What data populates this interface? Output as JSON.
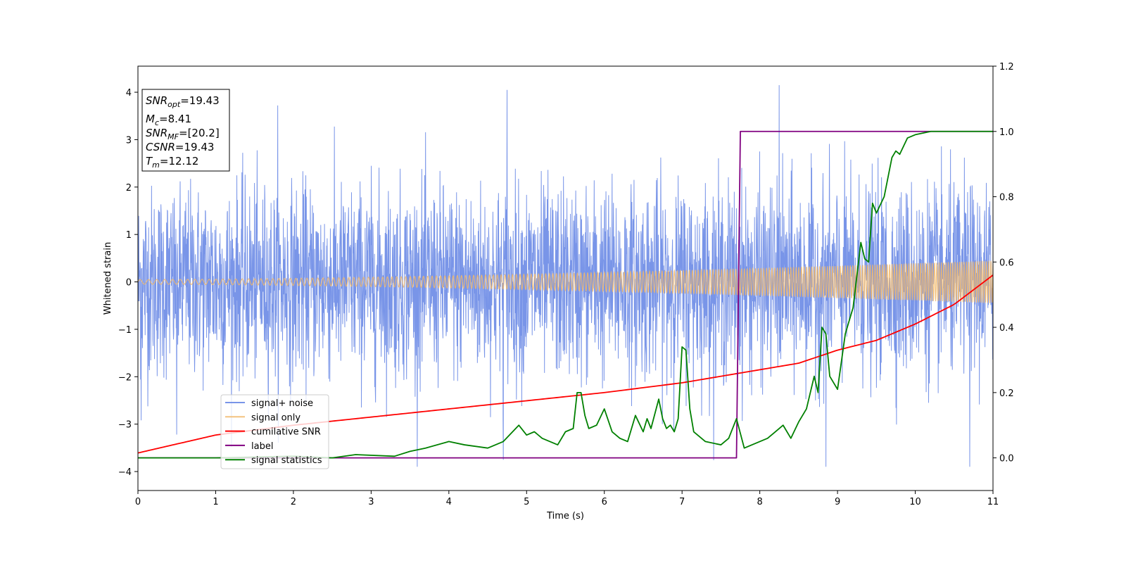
{
  "chart_data": {
    "type": "line",
    "title": "",
    "xlabel": "Time (s)",
    "ylabel": "Whitened strain",
    "y2label": "",
    "xlim": [
      0,
      11
    ],
    "ylim": [
      -4.4,
      4.55
    ],
    "y2lim": [
      -0.1,
      1.2
    ],
    "xticks": [
      0,
      1,
      2,
      3,
      4,
      5,
      6,
      7,
      8,
      9,
      10,
      11
    ],
    "xtick_labels": [
      "0",
      "1",
      "2",
      "3",
      "4",
      "5",
      "6",
      "7",
      "8",
      "9",
      "10",
      "11"
    ],
    "yticks": [
      4,
      3,
      2,
      1,
      0,
      -1,
      -2,
      -3,
      -4
    ],
    "ytick_labels": [
      "4",
      "3",
      "2",
      "1",
      "0",
      "−1",
      "−2",
      "−3",
      "−4"
    ],
    "y2ticks": [
      1.2,
      1.0,
      0.8,
      0.6,
      0.4,
      0.2,
      0.0
    ],
    "y2tick_labels": [
      "1.2",
      "1.0",
      "0.8",
      "0.6",
      "0.4",
      "0.2",
      "0.0"
    ],
    "grid": false,
    "legend_position": "lower-left",
    "colors": {
      "noise": "#6a8ae6",
      "signal": "#f2b86a",
      "csnr": "#ff0000",
      "label": "#800080",
      "stat": "#008000"
    },
    "annotation": {
      "snr_opt": {
        "main": "SNR",
        "sub": "opt",
        "value": "=19.43"
      },
      "mc": {
        "main": "M",
        "sub": "c",
        "value": "=8.41"
      },
      "snr_mf": {
        "main": "SNR",
        "sub": "MF",
        "value": "=[20.2]"
      },
      "csnr": {
        "main": "CSNR",
        "value": "=19.43"
      },
      "tm": {
        "main": "T",
        "sub": "m",
        "value": "=12.12"
      }
    },
    "series": [
      {
        "name": "signal+ noise",
        "axis": "left",
        "description_kind": "noise",
        "amplitude_std": 1.0,
        "peaks": [
          [
            1.8,
            3.72
          ],
          [
            4.75,
            4.05
          ],
          [
            8.25,
            4.18
          ],
          [
            8.85,
            -3.92
          ],
          [
            10.7,
            -4.0
          ],
          [
            4.7,
            -3.75
          ],
          [
            0.04,
            -2.92
          ],
          [
            0.5,
            -3.22
          ]
        ]
      },
      {
        "name": "signal only",
        "axis": "left",
        "amplitude_start": 0.05,
        "amplitude_end": 0.45,
        "chirp": true
      },
      {
        "name": "cumilative SNR",
        "axis": "right",
        "x": [
          0,
          1,
          2,
          3,
          4,
          5,
          6,
          7,
          8,
          8.5,
          9,
          9.5,
          10,
          10.5,
          11
        ],
        "y": [
          0.015,
          0.07,
          0.1,
          0.125,
          0.15,
          0.175,
          0.2,
          0.23,
          0.27,
          0.29,
          0.33,
          0.36,
          0.41,
          0.47,
          0.56
        ]
      },
      {
        "name": "label",
        "axis": "right",
        "x": [
          0,
          7.7,
          7.75,
          11
        ],
        "y": [
          0,
          0,
          1,
          1
        ]
      },
      {
        "name": "signal statistics",
        "axis": "right",
        "x": [
          0,
          1,
          2,
          2.5,
          2.8,
          3.3,
          3.5,
          3.7,
          4.0,
          4.2,
          4.5,
          4.7,
          4.9,
          5.0,
          5.1,
          5.2,
          5.4,
          5.5,
          5.6,
          5.65,
          5.7,
          5.75,
          5.8,
          5.9,
          6.0,
          6.1,
          6.2,
          6.3,
          6.4,
          6.5,
          6.55,
          6.6,
          6.7,
          6.75,
          6.8,
          6.85,
          6.9,
          6.95,
          7.0,
          7.05,
          7.1,
          7.15,
          7.3,
          7.5,
          7.6,
          7.7,
          7.8,
          7.9,
          8.0,
          8.1,
          8.2,
          8.3,
          8.4,
          8.5,
          8.6,
          8.7,
          8.75,
          8.8,
          8.85,
          8.9,
          9.0,
          9.1,
          9.2,
          9.3,
          9.35,
          9.4,
          9.45,
          9.5,
          9.6,
          9.7,
          9.75,
          9.8,
          9.9,
          10.0,
          10.2,
          10.5,
          11.0
        ],
        "y": [
          0.0,
          0.0,
          0.005,
          0.0,
          0.01,
          0.005,
          0.02,
          0.03,
          0.05,
          0.04,
          0.03,
          0.05,
          0.1,
          0.07,
          0.08,
          0.06,
          0.04,
          0.08,
          0.09,
          0.2,
          0.2,
          0.13,
          0.09,
          0.1,
          0.15,
          0.08,
          0.06,
          0.05,
          0.13,
          0.08,
          0.12,
          0.09,
          0.18,
          0.12,
          0.09,
          0.1,
          0.08,
          0.12,
          0.34,
          0.33,
          0.15,
          0.08,
          0.05,
          0.04,
          0.06,
          0.12,
          0.03,
          0.04,
          0.05,
          0.06,
          0.08,
          0.1,
          0.06,
          0.11,
          0.15,
          0.25,
          0.2,
          0.4,
          0.38,
          0.25,
          0.21,
          0.38,
          0.46,
          0.66,
          0.61,
          0.6,
          0.78,
          0.75,
          0.8,
          0.92,
          0.94,
          0.93,
          0.98,
          0.99,
          1.0,
          1.0,
          1.0
        ]
      }
    ]
  }
}
